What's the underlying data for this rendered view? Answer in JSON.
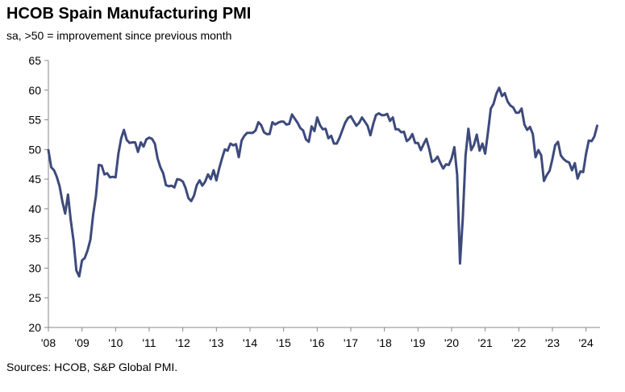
{
  "title": "HCOB Spain Manufacturing PMI",
  "subtitle": "sa, >50 = improvement since previous month",
  "source": "Sources: HCOB, S&P Global PMI.",
  "chart_data": {
    "type": "line",
    "title": "HCOB Spain Manufacturing PMI",
    "subtitle": "sa, >50 = improvement since previous month",
    "ylim": [
      20,
      65
    ],
    "yticks": [
      20,
      25,
      30,
      35,
      40,
      45,
      50,
      55,
      60,
      65
    ],
    "xlim": [
      2008.0,
      2024.417
    ],
    "xticks": [
      {
        "x": 2008,
        "label": "'08"
      },
      {
        "x": 2009,
        "label": "'09"
      },
      {
        "x": 2010,
        "label": "'10"
      },
      {
        "x": 2011,
        "label": "'11"
      },
      {
        "x": 2012,
        "label": "'12"
      },
      {
        "x": 2013,
        "label": "'13"
      },
      {
        "x": 2014,
        "label": "'14"
      },
      {
        "x": 2015,
        "label": "'15"
      },
      {
        "x": 2016,
        "label": "'16"
      },
      {
        "x": 2017,
        "label": "'17"
      },
      {
        "x": 2018,
        "label": "'18"
      },
      {
        "x": 2019,
        "label": "'19"
      },
      {
        "x": 2020,
        "label": "'20"
      },
      {
        "x": 2021,
        "label": "'21"
      },
      {
        "x": 2022,
        "label": "'22"
      },
      {
        "x": 2023,
        "label": "'23"
      },
      {
        "x": 2024,
        "label": "'24"
      }
    ],
    "grid": false,
    "legend": "none",
    "line_color": "#3d4a7c",
    "series": [
      {
        "values": [
          [
            2008.0,
            49.9
          ],
          [
            2008.083,
            47.0
          ],
          [
            2008.167,
            46.5
          ],
          [
            2008.25,
            45.4
          ],
          [
            2008.333,
            43.8
          ],
          [
            2008.417,
            41.2
          ],
          [
            2008.5,
            39.2
          ],
          [
            2008.583,
            42.4
          ],
          [
            2008.667,
            38.0
          ],
          [
            2008.75,
            34.6
          ],
          [
            2008.833,
            29.6
          ],
          [
            2008.917,
            28.6
          ],
          [
            2009.0,
            31.3
          ],
          [
            2009.083,
            31.7
          ],
          [
            2009.167,
            33.0
          ],
          [
            2009.25,
            34.8
          ],
          [
            2009.333,
            39.0
          ],
          [
            2009.417,
            42.2
          ],
          [
            2009.5,
            47.4
          ],
          [
            2009.583,
            47.3
          ],
          [
            2009.667,
            45.8
          ],
          [
            2009.75,
            46.0
          ],
          [
            2009.833,
            45.3
          ],
          [
            2009.917,
            45.4
          ],
          [
            2010.0,
            45.3
          ],
          [
            2010.083,
            49.3
          ],
          [
            2010.167,
            51.9
          ],
          [
            2010.25,
            53.3
          ],
          [
            2010.333,
            51.6
          ],
          [
            2010.417,
            51.1
          ],
          [
            2010.5,
            51.2
          ],
          [
            2010.583,
            51.2
          ],
          [
            2010.667,
            49.6
          ],
          [
            2010.75,
            51.2
          ],
          [
            2010.833,
            50.5
          ],
          [
            2010.917,
            51.7
          ],
          [
            2011.0,
            52.0
          ],
          [
            2011.083,
            51.8
          ],
          [
            2011.167,
            51.0
          ],
          [
            2011.25,
            48.5
          ],
          [
            2011.333,
            47.0
          ],
          [
            2011.417,
            46.0
          ],
          [
            2011.5,
            44.0
          ],
          [
            2011.583,
            43.8
          ],
          [
            2011.667,
            43.9
          ],
          [
            2011.75,
            43.6
          ],
          [
            2011.833,
            45.0
          ],
          [
            2011.917,
            44.9
          ],
          [
            2012.0,
            44.6
          ],
          [
            2012.083,
            43.5
          ],
          [
            2012.167,
            41.8
          ],
          [
            2012.25,
            41.3
          ],
          [
            2012.333,
            42.2
          ],
          [
            2012.417,
            44.0
          ],
          [
            2012.5,
            44.8
          ],
          [
            2012.583,
            43.9
          ],
          [
            2012.667,
            44.6
          ],
          [
            2012.75,
            45.8
          ],
          [
            2012.833,
            45.0
          ],
          [
            2012.917,
            46.5
          ],
          [
            2013.0,
            44.8
          ],
          [
            2013.083,
            46.8
          ],
          [
            2013.167,
            48.5
          ],
          [
            2013.25,
            50.0
          ],
          [
            2013.333,
            49.8
          ],
          [
            2013.417,
            51.0
          ],
          [
            2013.5,
            50.7
          ],
          [
            2013.583,
            50.9
          ],
          [
            2013.667,
            48.7
          ],
          [
            2013.75,
            51.5
          ],
          [
            2013.833,
            52.3
          ],
          [
            2013.917,
            52.8
          ],
          [
            2014.0,
            52.8
          ],
          [
            2014.083,
            52.8
          ],
          [
            2014.167,
            53.2
          ],
          [
            2014.25,
            54.6
          ],
          [
            2014.333,
            54.1
          ],
          [
            2014.417,
            52.9
          ],
          [
            2014.5,
            52.6
          ],
          [
            2014.583,
            52.6
          ],
          [
            2014.667,
            54.6
          ],
          [
            2014.75,
            54.2
          ],
          [
            2014.833,
            54.5
          ],
          [
            2014.917,
            54.7
          ],
          [
            2015.0,
            54.7
          ],
          [
            2015.083,
            54.2
          ],
          [
            2015.167,
            54.3
          ],
          [
            2015.25,
            55.9
          ],
          [
            2015.333,
            55.2
          ],
          [
            2015.417,
            54.5
          ],
          [
            2015.5,
            53.6
          ],
          [
            2015.583,
            53.2
          ],
          [
            2015.667,
            51.7
          ],
          [
            2015.75,
            51.3
          ],
          [
            2015.833,
            53.9
          ],
          [
            2015.917,
            53.1
          ],
          [
            2016.0,
            55.4
          ],
          [
            2016.083,
            54.1
          ],
          [
            2016.167,
            53.4
          ],
          [
            2016.25,
            53.5
          ],
          [
            2016.333,
            51.9
          ],
          [
            2016.417,
            52.3
          ],
          [
            2016.5,
            51.0
          ],
          [
            2016.583,
            51.0
          ],
          [
            2016.667,
            52.0
          ],
          [
            2016.75,
            53.3
          ],
          [
            2016.833,
            54.5
          ],
          [
            2016.917,
            55.3
          ],
          [
            2017.0,
            55.6
          ],
          [
            2017.083,
            54.8
          ],
          [
            2017.167,
            54.0
          ],
          [
            2017.25,
            54.5
          ],
          [
            2017.333,
            55.4
          ],
          [
            2017.417,
            54.7
          ],
          [
            2017.5,
            54.0
          ],
          [
            2017.583,
            52.4
          ],
          [
            2017.667,
            54.3
          ],
          [
            2017.75,
            55.8
          ],
          [
            2017.833,
            56.1
          ],
          [
            2017.917,
            55.8
          ],
          [
            2018.0,
            55.8
          ],
          [
            2018.083,
            56.0
          ],
          [
            2018.167,
            54.8
          ],
          [
            2018.25,
            55.4
          ],
          [
            2018.333,
            53.4
          ],
          [
            2018.417,
            53.4
          ],
          [
            2018.5,
            52.9
          ],
          [
            2018.583,
            53.0
          ],
          [
            2018.667,
            51.4
          ],
          [
            2018.75,
            51.8
          ],
          [
            2018.833,
            52.6
          ],
          [
            2018.917,
            51.1
          ],
          [
            2019.0,
            51.1
          ],
          [
            2019.083,
            49.9
          ],
          [
            2019.167,
            50.9
          ],
          [
            2019.25,
            51.8
          ],
          [
            2019.333,
            50.1
          ],
          [
            2019.417,
            47.9
          ],
          [
            2019.5,
            48.2
          ],
          [
            2019.583,
            48.8
          ],
          [
            2019.667,
            47.7
          ],
          [
            2019.75,
            46.8
          ],
          [
            2019.833,
            47.5
          ],
          [
            2019.917,
            47.4
          ],
          [
            2020.0,
            48.5
          ],
          [
            2020.083,
            50.4
          ],
          [
            2020.167,
            45.7
          ],
          [
            2020.25,
            30.8
          ],
          [
            2020.333,
            38.3
          ],
          [
            2020.417,
            49.0
          ],
          [
            2020.5,
            53.5
          ],
          [
            2020.583,
            49.9
          ],
          [
            2020.667,
            50.8
          ],
          [
            2020.75,
            52.5
          ],
          [
            2020.833,
            49.8
          ],
          [
            2020.917,
            51.0
          ],
          [
            2021.0,
            49.3
          ],
          [
            2021.083,
            52.9
          ],
          [
            2021.167,
            56.9
          ],
          [
            2021.25,
            57.7
          ],
          [
            2021.333,
            59.4
          ],
          [
            2021.417,
            60.4
          ],
          [
            2021.5,
            59.0
          ],
          [
            2021.583,
            59.5
          ],
          [
            2021.667,
            58.1
          ],
          [
            2021.75,
            57.4
          ],
          [
            2021.833,
            57.1
          ],
          [
            2021.917,
            56.2
          ],
          [
            2022.0,
            56.2
          ],
          [
            2022.083,
            56.9
          ],
          [
            2022.167,
            54.2
          ],
          [
            2022.25,
            53.3
          ],
          [
            2022.333,
            53.8
          ],
          [
            2022.417,
            52.6
          ],
          [
            2022.5,
            48.7
          ],
          [
            2022.583,
            49.9
          ],
          [
            2022.667,
            49.0
          ],
          [
            2022.75,
            44.7
          ],
          [
            2022.833,
            45.7
          ],
          [
            2022.917,
            46.4
          ],
          [
            2023.0,
            48.4
          ],
          [
            2023.083,
            50.7
          ],
          [
            2023.167,
            51.3
          ],
          [
            2023.25,
            49.0
          ],
          [
            2023.333,
            48.4
          ],
          [
            2023.417,
            48.0
          ],
          [
            2023.5,
            47.8
          ],
          [
            2023.583,
            46.5
          ],
          [
            2023.667,
            47.7
          ],
          [
            2023.75,
            45.1
          ],
          [
            2023.833,
            46.3
          ],
          [
            2023.917,
            46.2
          ],
          [
            2024.0,
            49.2
          ],
          [
            2024.083,
            51.5
          ],
          [
            2024.167,
            51.4
          ],
          [
            2024.25,
            52.2
          ],
          [
            2024.333,
            54.0
          ]
        ]
      }
    ]
  }
}
